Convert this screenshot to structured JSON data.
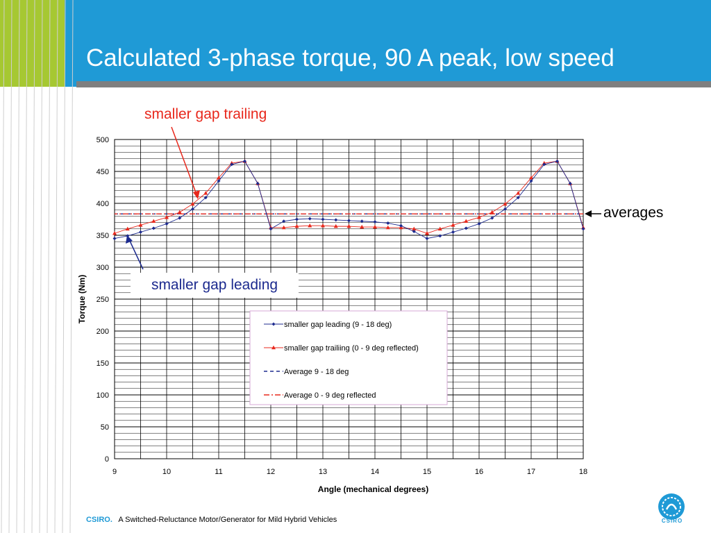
{
  "slide": {
    "title": "Calculated 3-phase torque, 90 A peak, low speed",
    "annotations": {
      "trailing": "smaller gap trailing",
      "leading": "smaller gap leading",
      "averages": "averages"
    },
    "footer": {
      "brand": "CSIRO.",
      "text": "A Switched-Reluctance Motor/Generator for Mild Hybrid Vehicles"
    },
    "logo_text": "CSIRO"
  },
  "colors": {
    "header": "#1f9ad6",
    "accent_green": "#a6c832",
    "series_blue": "#1c2a8e",
    "series_red": "#e8281c"
  },
  "chart_data": {
    "type": "line",
    "title": "",
    "xlabel": "Angle (mechanical degrees)",
    "ylabel": "Torque (Nm)",
    "xlim": [
      9,
      18
    ],
    "ylim": [
      0,
      500
    ],
    "x_ticks": [
      9,
      10,
      11,
      12,
      13,
      14,
      15,
      16,
      17,
      18
    ],
    "y_ticks": [
      0,
      50,
      100,
      150,
      200,
      250,
      300,
      350,
      400,
      450,
      500
    ],
    "grid": true,
    "legend_position": "center-right",
    "series": [
      {
        "name": "smaller gap leading (9 - 18 deg)",
        "color": "#1c2a8e",
        "marker": "diamond",
        "x": [
          9,
          9.25,
          9.5,
          9.75,
          10,
          10.25,
          10.5,
          10.75,
          11,
          11.25,
          11.5,
          11.75,
          12,
          12.25,
          12.5,
          12.75,
          13,
          13.25,
          13.5,
          13.75,
          14,
          14.25,
          14.5,
          14.75,
          15,
          15.25,
          15.5,
          15.75,
          16,
          16.25,
          16.5,
          16.75,
          17,
          17.25,
          17.5,
          17.75,
          18
        ],
        "values": [
          345,
          349,
          355,
          361,
          368,
          377,
          391,
          409,
          435,
          461,
          466,
          431,
          360,
          372,
          375,
          376,
          375,
          374,
          373,
          372,
          371,
          369,
          365,
          356,
          345,
          349,
          355,
          361,
          368,
          377,
          391,
          409,
          435,
          461,
          466,
          431,
          360
        ]
      },
      {
        "name": "smaller gap trailiing (0 - 9 deg reflected)",
        "color": "#e8281c",
        "marker": "triangle",
        "x": [
          9,
          9.25,
          9.5,
          9.75,
          10,
          10.25,
          10.5,
          10.75,
          11,
          11.25,
          11.5,
          11.75,
          12,
          12.25,
          12.5,
          12.75,
          13,
          13.25,
          13.5,
          13.75,
          14,
          14.25,
          14.5,
          14.75,
          15,
          15.25,
          15.5,
          15.75,
          16,
          16.25,
          16.5,
          16.75,
          17,
          17.25,
          17.5,
          17.75,
          18
        ],
        "values": [
          353,
          360,
          366,
          372,
          378,
          386,
          399,
          416,
          440,
          463,
          466,
          431,
          362,
          362,
          364,
          365,
          365,
          364,
          364,
          363,
          363,
          362,
          362,
          360,
          353,
          360,
          366,
          372,
          378,
          386,
          399,
          416,
          440,
          463,
          466,
          431,
          362
        ]
      },
      {
        "name": "Average 9 - 18 deg",
        "color": "#1c2a8e",
        "style": "dashed",
        "x": [
          9,
          18
        ],
        "values": [
          383.5,
          383.5
        ]
      },
      {
        "name": "Average 0 - 9 deg reflected",
        "color": "#e8281c",
        "style": "dash-dot",
        "x": [
          9,
          18
        ],
        "values": [
          383.5,
          383.5
        ]
      }
    ]
  }
}
